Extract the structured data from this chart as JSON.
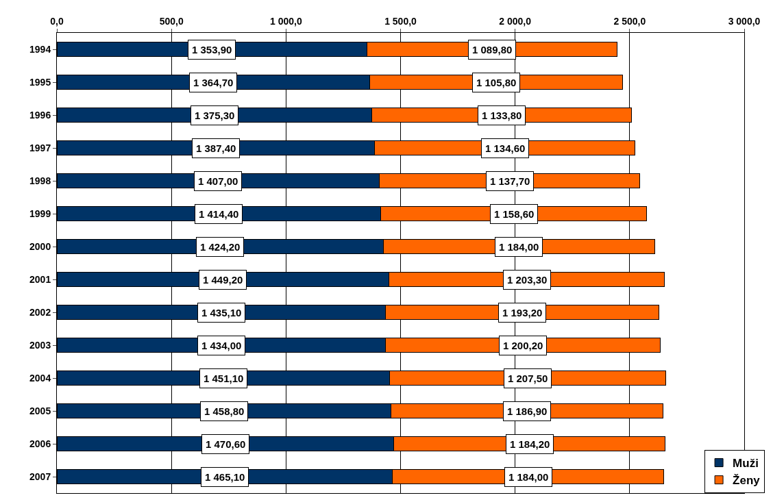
{
  "chart_data": {
    "type": "bar",
    "orientation": "horizontal",
    "stacked": true,
    "categories": [
      "1994",
      "1995",
      "1996",
      "1997",
      "1998",
      "1999",
      "2000",
      "2001",
      "2002",
      "2003",
      "2004",
      "2005",
      "2006",
      "2007"
    ],
    "series": [
      {
        "name": "Muži",
        "color": "#003366",
        "values": [
          1353.9,
          1364.7,
          1375.3,
          1387.4,
          1407.0,
          1414.4,
          1424.2,
          1449.2,
          1435.1,
          1434.0,
          1451.1,
          1458.8,
          1470.6,
          1465.1
        ],
        "value_labels": [
          "1 353,90",
          "1 364,70",
          "1 375,30",
          "1 387,40",
          "1 407,00",
          "1 414,40",
          "1 424,20",
          "1 449,20",
          "1 435,10",
          "1 434,00",
          "1 451,10",
          "1 458,80",
          "1 470,60",
          "1 465,10"
        ]
      },
      {
        "name": "Ženy",
        "color": "#ff6600",
        "values": [
          1089.8,
          1105.8,
          1133.8,
          1134.6,
          1137.7,
          1158.6,
          1184.0,
          1203.3,
          1193.2,
          1200.2,
          1207.5,
          1186.9,
          1184.2,
          1184.0
        ],
        "value_labels": [
          "1 089,80",
          "1 105,80",
          "1 133,80",
          "1 134,60",
          "1 137,70",
          "1 158,60",
          "1 184,00",
          "1 203,30",
          "1 193,20",
          "1 200,20",
          "1 207,50",
          "1 186,90",
          "1 184,20",
          "1 184,00"
        ]
      }
    ],
    "xlim": [
      0,
      3000
    ],
    "xticks": [
      {
        "value": 0,
        "label": "0,0"
      },
      {
        "value": 500,
        "label": "500,0"
      },
      {
        "value": 1000,
        "label": "1 000,0"
      },
      {
        "value": 1500,
        "label": "1 500,0"
      },
      {
        "value": 2000,
        "label": "2 000,0"
      },
      {
        "value": 2500,
        "label": "2 500,0"
      },
      {
        "value": 3000,
        "label": "3 000,0"
      }
    ],
    "grid": "x",
    "legend": "bottom right"
  }
}
